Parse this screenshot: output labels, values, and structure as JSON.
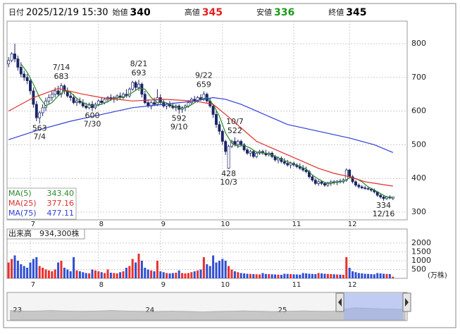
{
  "header": [
    {
      "label": "日付",
      "value": "2025/12/19 15:30",
      "color": "#000000"
    },
    {
      "label": "始値",
      "value": 340,
      "color": "#000000"
    },
    {
      "label": "高値",
      "value": 345,
      "color": "#e0201c"
    },
    {
      "label": "安値",
      "value": 336,
      "color": "#1a9a1a"
    },
    {
      "label": "終値",
      "value": 345,
      "color": "#000000"
    }
  ],
  "chart_data": [
    {
      "type": "candlestick",
      "xlim": [
        -0.5,
        128.6
      ],
      "ylim": [
        277,
        867
      ],
      "yticks": [
        300,
        400,
        500,
        600,
        700,
        800
      ],
      "grid": true,
      "xticks": [
        {
          "value": 7,
          "label": "7"
        },
        {
          "value": 29,
          "label": "8"
        },
        {
          "value": 49,
          "label": "9"
        },
        {
          "value": 69,
          "label": "10"
        },
        {
          "value": 92,
          "label": "11"
        },
        {
          "value": 110,
          "label": "12"
        }
      ],
      "up_color": "#ffffff",
      "down_color": "#1c2566",
      "candles": [
        [
          740,
          760,
          730,
          750
        ],
        [
          750,
          775,
          745,
          770
        ],
        [
          770,
          800,
          745,
          755
        ],
        [
          755,
          765,
          720,
          730
        ],
        [
          730,
          745,
          700,
          710
        ],
        [
          710,
          720,
          690,
          700
        ],
        [
          700,
          710,
          680,
          690
        ],
        [
          690,
          700,
          650,
          660
        ],
        [
          660,
          670,
          610,
          620
        ],
        [
          620,
          630,
          570,
          580
        ],
        [
          580,
          600,
          563,
          595
        ],
        [
          595,
          620,
          585,
          610
        ],
        [
          610,
          640,
          600,
          630
        ],
        [
          630,
          650,
          620,
          640
        ],
        [
          640,
          660,
          630,
          650
        ],
        [
          650,
          670,
          640,
          660
        ],
        [
          660,
          675,
          645,
          650
        ],
        [
          650,
          683,
          640,
          675
        ],
        [
          675,
          680,
          650,
          660
        ],
        [
          660,
          670,
          640,
          645
        ],
        [
          645,
          660,
          630,
          640
        ],
        [
          640,
          650,
          620,
          625
        ],
        [
          625,
          640,
          615,
          630
        ],
        [
          630,
          640,
          620,
          625
        ],
        [
          625,
          635,
          610,
          615
        ],
        [
          615,
          625,
          605,
          610
        ],
        [
          610,
          625,
          605,
          620
        ],
        [
          620,
          630,
          600,
          610
        ],
        [
          610,
          625,
          605,
          620
        ],
        [
          620,
          635,
          615,
          630
        ],
        [
          630,
          640,
          620,
          625
        ],
        [
          625,
          640,
          620,
          635
        ],
        [
          635,
          645,
          625,
          640
        ],
        [
          640,
          650,
          630,
          635
        ],
        [
          635,
          645,
          625,
          640
        ],
        [
          640,
          650,
          630,
          645
        ],
        [
          645,
          655,
          635,
          640
        ],
        [
          640,
          655,
          635,
          650
        ],
        [
          650,
          665,
          640,
          645
        ],
        [
          645,
          670,
          640,
          665
        ],
        [
          665,
          690,
          660,
          685
        ],
        [
          685,
          690,
          660,
          670
        ],
        [
          670,
          693,
          660,
          680
        ],
        [
          680,
          685,
          640,
          650
        ],
        [
          650,
          660,
          620,
          625
        ],
        [
          625,
          635,
          610,
          615
        ],
        [
          615,
          630,
          605,
          625
        ],
        [
          625,
          640,
          615,
          620
        ],
        [
          620,
          665,
          615,
          640
        ],
        [
          640,
          650,
          620,
          625
        ],
        [
          625,
          635,
          610,
          615
        ],
        [
          615,
          625,
          605,
          620
        ],
        [
          620,
          630,
          610,
          615
        ],
        [
          615,
          625,
          605,
          610
        ],
        [
          610,
          620,
          600,
          615
        ],
        [
          615,
          620,
          592,
          605
        ],
        [
          605,
          615,
          595,
          610
        ],
        [
          610,
          620,
          600,
          615
        ],
        [
          615,
          630,
          610,
          625
        ],
        [
          625,
          640,
          620,
          635
        ],
        [
          635,
          645,
          625,
          630
        ],
        [
          630,
          645,
          625,
          640
        ],
        [
          640,
          650,
          630,
          635
        ],
        [
          635,
          659,
          630,
          650
        ],
        [
          650,
          655,
          625,
          630
        ],
        [
          630,
          640,
          610,
          615
        ],
        [
          615,
          620,
          580,
          590
        ],
        [
          590,
          600,
          550,
          560
        ],
        [
          560,
          570,
          530,
          540
        ],
        [
          540,
          545,
          500,
          510
        ],
        [
          510,
          515,
          470,
          480
        ],
        [
          430,
          500,
          428,
          495
        ],
        [
          495,
          515,
          490,
          510
        ],
        [
          510,
          522,
          495,
          500
        ],
        [
          500,
          515,
          490,
          510
        ],
        [
          510,
          515,
          495,
          500
        ],
        [
          500,
          505,
          480,
          485
        ],
        [
          485,
          490,
          470,
          475
        ],
        [
          475,
          485,
          465,
          480
        ],
        [
          480,
          485,
          460,
          465
        ],
        [
          465,
          480,
          460,
          475
        ],
        [
          475,
          485,
          470,
          480
        ],
        [
          480,
          485,
          470,
          475
        ],
        [
          475,
          485,
          465,
          470
        ],
        [
          470,
          480,
          465,
          475
        ],
        [
          475,
          480,
          460,
          465
        ],
        [
          465,
          470,
          450,
          455
        ],
        [
          455,
          465,
          445,
          460
        ],
        [
          460,
          465,
          445,
          450
        ],
        [
          450,
          460,
          440,
          445
        ],
        [
          445,
          455,
          435,
          440
        ],
        [
          440,
          450,
          430,
          445
        ],
        [
          445,
          450,
          435,
          440
        ],
        [
          440,
          445,
          430,
          435
        ],
        [
          435,
          445,
          425,
          430
        ],
        [
          430,
          440,
          420,
          425
        ],
        [
          425,
          435,
          415,
          420
        ],
        [
          420,
          425,
          400,
          405
        ],
        [
          405,
          410,
          390,
          395
        ],
        [
          395,
          400,
          380,
          385
        ],
        [
          385,
          395,
          378,
          390
        ],
        [
          390,
          395,
          380,
          385
        ],
        [
          385,
          390,
          375,
          380
        ],
        [
          380,
          390,
          375,
          385
        ],
        [
          385,
          395,
          378,
          390
        ],
        [
          390,
          395,
          382,
          388
        ],
        [
          388,
          395,
          380,
          392
        ],
        [
          392,
          398,
          385,
          390
        ],
        [
          390,
          400,
          385,
          395
        ],
        [
          395,
          430,
          390,
          425
        ],
        [
          425,
          428,
          400,
          405
        ],
        [
          405,
          410,
          385,
          390
        ],
        [
          390,
          395,
          375,
          380
        ],
        [
          380,
          385,
          370,
          375
        ],
        [
          375,
          380,
          368,
          372
        ],
        [
          372,
          378,
          366,
          370
        ],
        [
          370,
          375,
          365,
          368
        ],
        [
          368,
          372,
          360,
          365
        ],
        [
          365,
          370,
          355,
          360
        ],
        [
          360,
          362,
          345,
          350
        ],
        [
          350,
          355,
          340,
          345
        ],
        [
          345,
          350,
          334,
          340
        ],
        [
          340,
          348,
          336,
          345
        ],
        [
          345,
          350,
          338,
          342
        ],
        [
          340,
          345,
          336,
          345
        ]
      ],
      "series": [
        {
          "name": "MA(5)",
          "color": "#2a8a2a",
          "latest_label": "343.40",
          "x": [
            4,
            6,
            8,
            10,
            12,
            14,
            16,
            18,
            20,
            22,
            24,
            26,
            28,
            30,
            32,
            34,
            36,
            38,
            40,
            42,
            44,
            46,
            48,
            50,
            52,
            54,
            56,
            58,
            60,
            62,
            64,
            66,
            68,
            70,
            72,
            74,
            76,
            78,
            80,
            82,
            84,
            86,
            88,
            90,
            92,
            94,
            96,
            98,
            100,
            102,
            104,
            106,
            108,
            110,
            112,
            114,
            116,
            118,
            120,
            122,
            124
          ],
          "values": [
            740,
            715,
            680,
            640,
            615,
            625,
            645,
            660,
            655,
            638,
            625,
            618,
            615,
            620,
            628,
            638,
            640,
            645,
            655,
            668,
            665,
            640,
            625,
            628,
            620,
            612,
            608,
            613,
            625,
            635,
            640,
            620,
            585,
            535,
            505,
            495,
            498,
            490,
            478,
            476,
            474,
            466,
            457,
            450,
            443,
            436,
            428,
            410,
            398,
            388,
            386,
            389,
            391,
            402,
            400,
            390,
            375,
            366,
            355,
            345,
            343.4
          ]
        },
        {
          "name": "MA(25)",
          "color": "#e0302c",
          "latest_label": "377.16",
          "x": [
            0,
            8,
            16,
            24,
            30,
            40,
            50,
            60,
            66,
            70,
            75,
            80,
            85,
            90,
            95,
            100,
            105,
            110,
            115,
            124
          ],
          "values": [
            600,
            640,
            667,
            650,
            640,
            630,
            635,
            630,
            620,
            590,
            550,
            510,
            490,
            470,
            450,
            430,
            415,
            405,
            390,
            377.16
          ]
        },
        {
          "name": "MA(75)",
          "color": "#2f3fd8",
          "latest_label": "477.11",
          "x": [
            0,
            10,
            20,
            30,
            40,
            50,
            60,
            66,
            70,
            75,
            80,
            85,
            90,
            100,
            110,
            118,
            124
          ],
          "values": [
            515,
            545,
            570,
            590,
            610,
            620,
            630,
            640,
            635,
            620,
            600,
            580,
            560,
            540,
            520,
            500,
            477.11
          ]
        }
      ],
      "annotations": [
        {
          "index": 10,
          "value": 563,
          "date": "7/4",
          "kind": "low"
        },
        {
          "index": 17,
          "value": 683,
          "date": "7/14",
          "kind": "high"
        },
        {
          "index": 27,
          "value": 600,
          "date": "7/30",
          "kind": "low"
        },
        {
          "index": 42,
          "value": 693,
          "date": "8/21",
          "kind": "high"
        },
        {
          "index": 55,
          "value": 592,
          "date": "9/10",
          "kind": "low"
        },
        {
          "index": 63,
          "value": 659,
          "date": "9/22",
          "kind": "high"
        },
        {
          "index": 71,
          "value": 428,
          "date": "10/3",
          "kind": "low"
        },
        {
          "index": 73,
          "value": 522,
          "date": "10/7",
          "kind": "high"
        },
        {
          "index": 121,
          "value": 334,
          "date": "12/16",
          "kind": "low"
        }
      ]
    },
    {
      "type": "volume",
      "title": "出来高",
      "subtitle": "934,300株",
      "unit": "(万株)",
      "xlim": [
        -0.5,
        128.6
      ],
      "ylim": [
        0,
        2800
      ],
      "yticks": [
        500,
        1000,
        1500,
        2000
      ],
      "grid": true,
      "xticks": [
        {
          "value": 7,
          "label": "7"
        },
        {
          "value": 29,
          "label": "8"
        },
        {
          "value": 49,
          "label": "9"
        },
        {
          "value": 69,
          "label": "10"
        },
        {
          "value": 92,
          "label": "11"
        },
        {
          "value": 110,
          "label": "12"
        }
      ],
      "up_color": "#e8302c",
      "down_color": "#2f4fd0",
      "values": [
        900,
        1100,
        1300,
        1000,
        800,
        700,
        600,
        900,
        1100,
        1200,
        700,
        600,
        500,
        450,
        400,
        500,
        900,
        1000,
        600,
        500,
        400,
        1200,
        450,
        400,
        350,
        300,
        280,
        500,
        450,
        400,
        350,
        300,
        500,
        320,
        300,
        280,
        350,
        400,
        600,
        700,
        1100,
        900,
        1400,
        1000,
        600,
        500,
        450,
        400,
        1000,
        400,
        350,
        300,
        280,
        300,
        320,
        450,
        300,
        280,
        300,
        350,
        400,
        450,
        500,
        1200,
        800,
        700,
        1300,
        900,
        1000,
        1100,
        1000,
        700,
        500,
        400,
        350,
        300,
        280,
        260,
        250,
        240,
        230,
        220,
        300,
        250,
        240,
        230,
        220,
        210,
        200,
        260,
        250,
        240,
        230,
        220,
        210,
        300,
        280,
        260,
        250,
        240,
        300,
        280,
        260,
        250,
        240,
        230,
        220,
        210,
        200,
        1200,
        600,
        400,
        350,
        300,
        280,
        260,
        250,
        240,
        230,
        300,
        280,
        260,
        250,
        240,
        93.43
      ]
    },
    {
      "type": "area",
      "color": "#b4b4b4",
      "xlim": [
        -0.2,
        39.2
      ],
      "ylim": [
        0,
        100
      ],
      "xticks": [
        {
          "value": 0.4,
          "label": "23"
        },
        {
          "value": 13.5,
          "label": "24"
        },
        {
          "value": 26.6,
          "label": "25"
        }
      ],
      "values": [
        35,
        34,
        33,
        34,
        35,
        34,
        33,
        32,
        33,
        34,
        35,
        34,
        33,
        32,
        31,
        32,
        33,
        32,
        31,
        30,
        31,
        32,
        33,
        34,
        33,
        32,
        31,
        32,
        33,
        34,
        33,
        32,
        33,
        40,
        45,
        44,
        42,
        41,
        40,
        39
      ]
    }
  ]
}
